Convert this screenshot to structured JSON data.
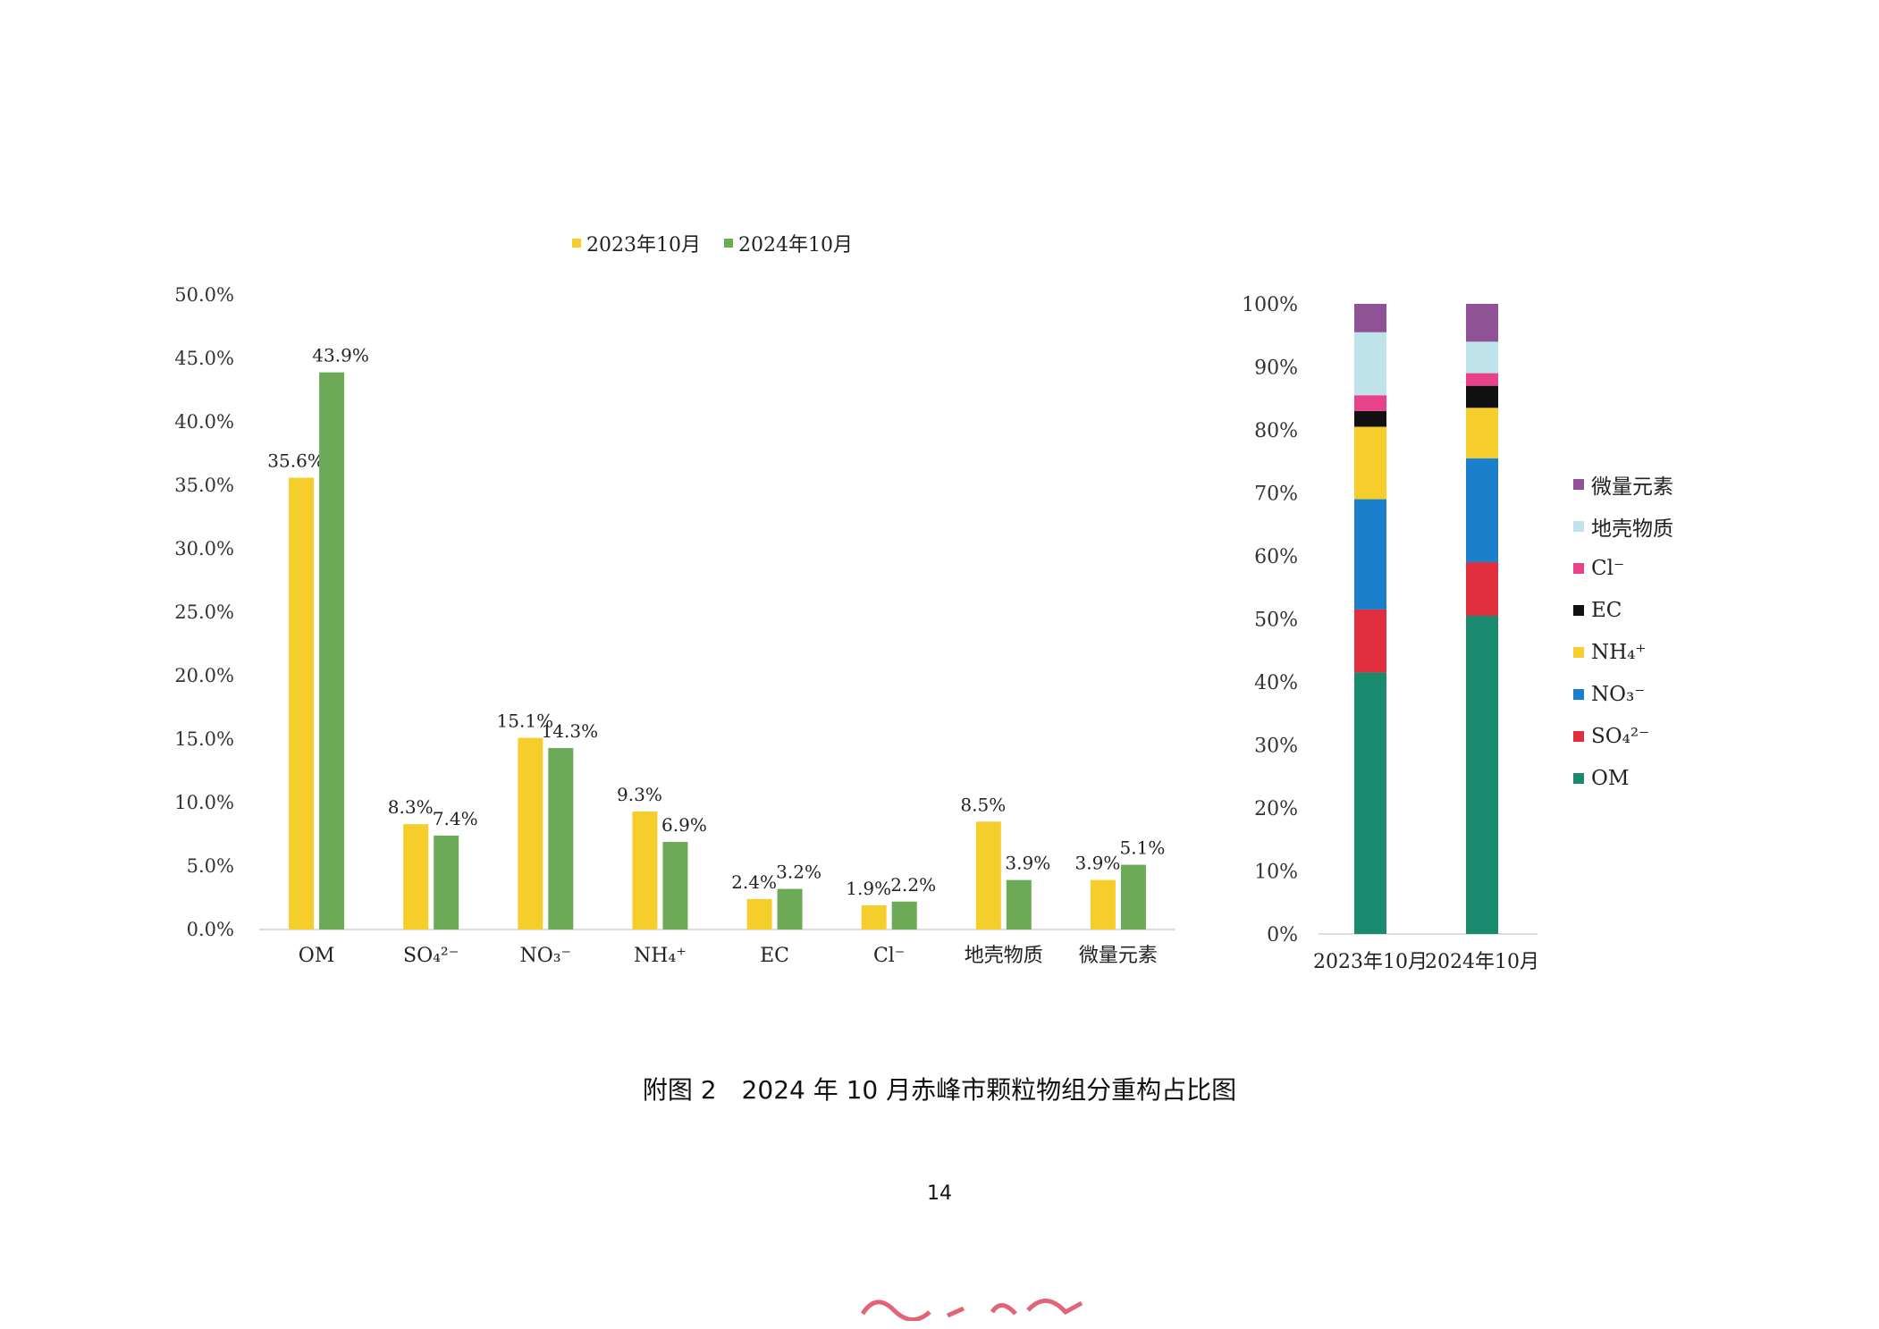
{
  "caption": "附图 2　2024 年 10 月赤峰市颗粒物组分重构占比图",
  "page_number": "14",
  "colors": {
    "y2023": "#F5CE2B",
    "y2024": "#6DAA57"
  },
  "chart_data": [
    {
      "type": "bar",
      "title": "",
      "categories": [
        "OM",
        "SO₄²⁻",
        "NO₃⁻",
        "NH₄⁺",
        "EC",
        "Cl⁻",
        "地壳物质",
        "微量元素"
      ],
      "series": [
        {
          "name": "2023年10月",
          "color": "#F5CE2B",
          "values": [
            35.6,
            8.3,
            15.1,
            9.3,
            2.4,
            1.9,
            8.5,
            3.9
          ],
          "labels": [
            "35.6%",
            "8.3%",
            "15.1%",
            "9.3%",
            "2.4%",
            "1.9%",
            "8.5%",
            "3.9%"
          ]
        },
        {
          "name": "2024年10月",
          "color": "#6DAA57",
          "values": [
            43.9,
            7.4,
            14.3,
            6.9,
            3.2,
            2.2,
            3.9,
            5.1
          ],
          "labels": [
            "43.9%",
            "7.4%",
            "14.3%",
            "6.9%",
            "3.2%",
            "2.2%",
            "3.9%",
            "5.1%"
          ]
        }
      ],
      "ylim": [
        0,
        50
      ],
      "yticks": [
        "0.0%",
        "5.0%",
        "10.0%",
        "15.0%",
        "20.0%",
        "25.0%",
        "30.0%",
        "35.0%",
        "40.0%",
        "45.0%",
        "50.0%"
      ],
      "legend": "top"
    },
    {
      "type": "bar",
      "stacked": true,
      "title": "",
      "categories": [
        "2023年10月",
        "2024年10月"
      ],
      "series": [
        {
          "name": "OM",
          "color": "#1A8A6E",
          "values": [
            41.5,
            50.5
          ]
        },
        {
          "name": "SO₄²⁻",
          "color": "#E02E3E",
          "values": [
            10,
            8.5
          ]
        },
        {
          "name": "NO₃⁻",
          "color": "#1B7FCB",
          "values": [
            17.5,
            16.5
          ]
        },
        {
          "name": "NH₄⁺",
          "color": "#F5CE2B",
          "values": [
            11.5,
            8
          ]
        },
        {
          "name": "EC",
          "color": "#111111",
          "values": [
            2.5,
            3.5
          ]
        },
        {
          "name": "Cl⁻",
          "color": "#E8428A",
          "values": [
            2.5,
            2
          ]
        },
        {
          "name": "地壳物质",
          "color": "#BFE3EA",
          "values": [
            10,
            5
          ]
        },
        {
          "name": "微量元素",
          "color": "#8E5295",
          "values": [
            4.5,
            6
          ]
        }
      ],
      "ylim": [
        0,
        100
      ],
      "yticks": [
        "0%",
        "10%",
        "20%",
        "30%",
        "40%",
        "50%",
        "60%",
        "70%",
        "80%",
        "90%",
        "100%"
      ],
      "legend": "right"
    }
  ]
}
